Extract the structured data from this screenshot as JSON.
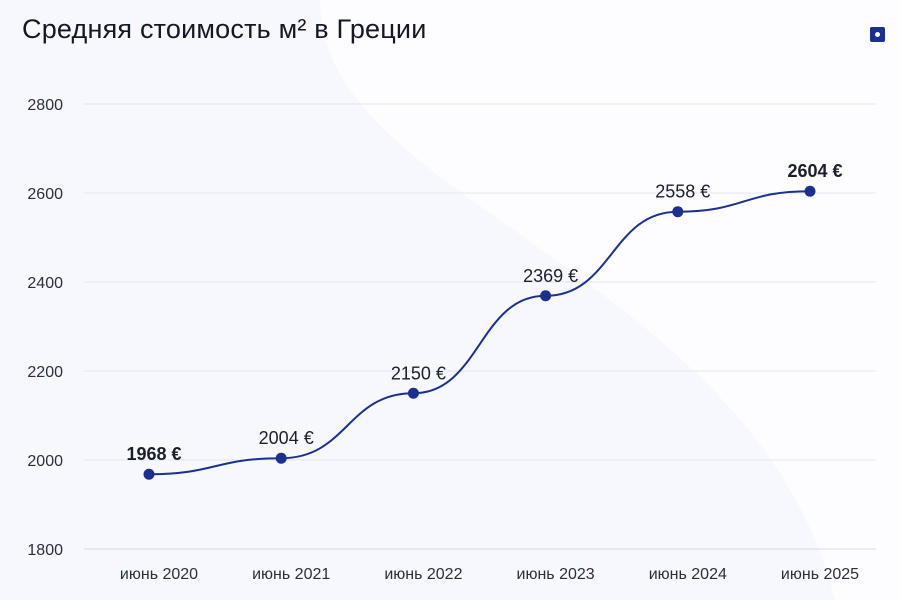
{
  "title": "Средняя стоимость м² в Греции",
  "logo_icon": "square-dot-icon",
  "colors": {
    "line": "#1d2f8f",
    "marker": "#1d2f8f",
    "grid": "#e3e7f0",
    "background": "#f6f8fd"
  },
  "chart_data": {
    "type": "line",
    "title": "Средняя стоимость м² в Греции",
    "categories": [
      "июнь 2020",
      "июнь 2021",
      "июнь 2022",
      "июнь 2023",
      "июнь 2024",
      "июнь 2025"
    ],
    "series": [
      {
        "values": [
          1968,
          2004,
          2150,
          2369,
          2558,
          2604
        ],
        "labels": [
          "1968 €",
          "2004 €",
          "2150 €",
          "2369 €",
          "2558 €",
          "2604 €"
        ],
        "bold_labels": [
          true,
          false,
          false,
          false,
          false,
          true
        ]
      }
    ],
    "ylim": [
      1800,
      2800
    ],
    "yticks": [
      1800,
      2000,
      2200,
      2400,
      2600,
      2800
    ],
    "smooth": true,
    "grid": true,
    "xlabel": "",
    "ylabel": ""
  }
}
